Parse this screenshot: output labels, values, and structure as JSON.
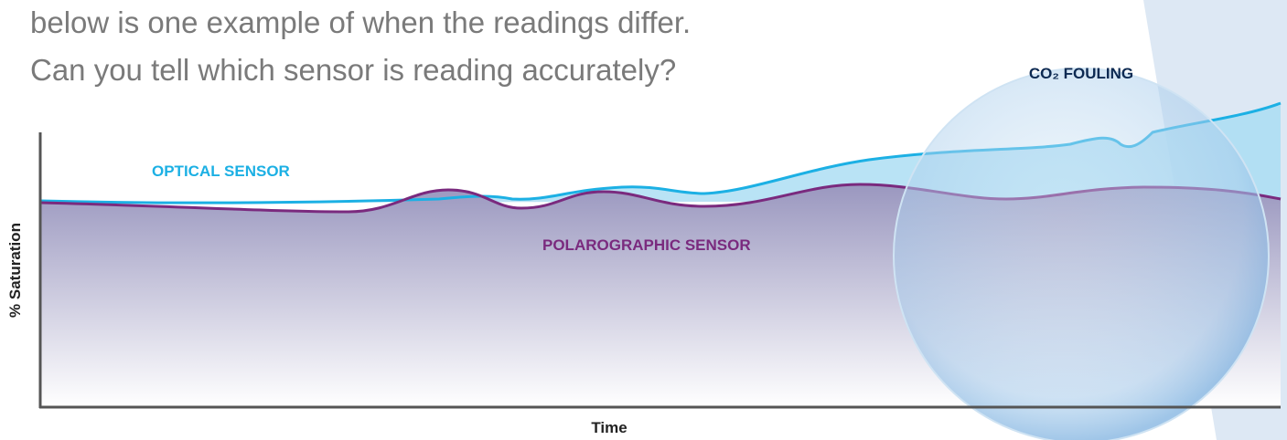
{
  "intro": {
    "line1": "below is one example of when the readings differ.",
    "line2": "Can you tell which sensor is reading accurately?"
  },
  "bubble_label": "CO₂ FOULING",
  "series_labels": {
    "optical": "OPTICAL SENSOR",
    "polarographic": "POLAROGRAPHIC SENSOR"
  },
  "axes": {
    "y": "% Saturation",
    "x": "Time"
  }
}
